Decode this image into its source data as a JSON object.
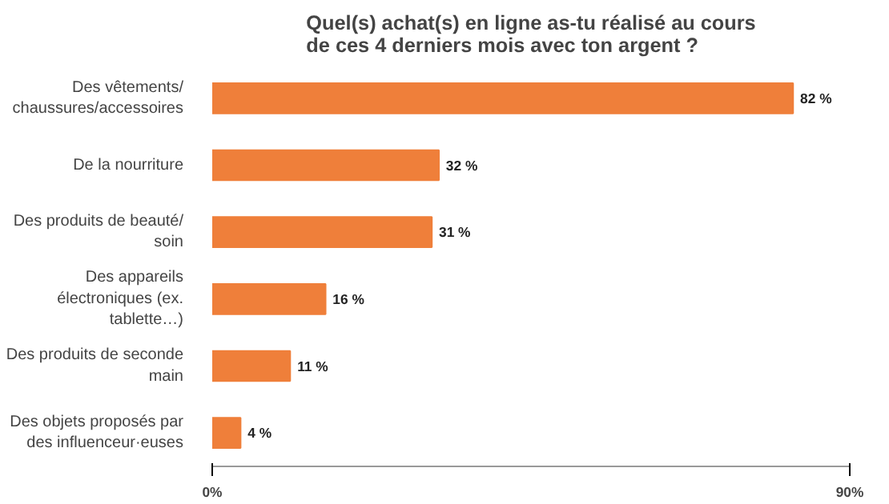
{
  "chart_data": {
    "type": "bar",
    "orientation": "horizontal",
    "title": "Quel(s) achat(s) en ligne as-tu réalisé au cours de ces 4 derniers mois avec ton argent ?",
    "categories": [
      "Des vêtements/chaussures/accessoires",
      "De la nourriture",
      "Des produits de beauté/soin",
      "Des appareils électroniques (ex. tablette…)",
      "Des produits de seconde main",
      "Des objets proposés par des influenceur·euses"
    ],
    "values": [
      82,
      32,
      31,
      16,
      11,
      4
    ],
    "value_labels": [
      "82 %",
      "32 %",
      "31 %",
      "16 %",
      "11 %",
      "4 %"
    ],
    "color": "#ef7f3a",
    "xlim": [
      0,
      90
    ],
    "xticks": [
      {
        "value": 0,
        "label": "0%"
      },
      {
        "value": 90,
        "label": "90%"
      }
    ],
    "grid": false
  }
}
